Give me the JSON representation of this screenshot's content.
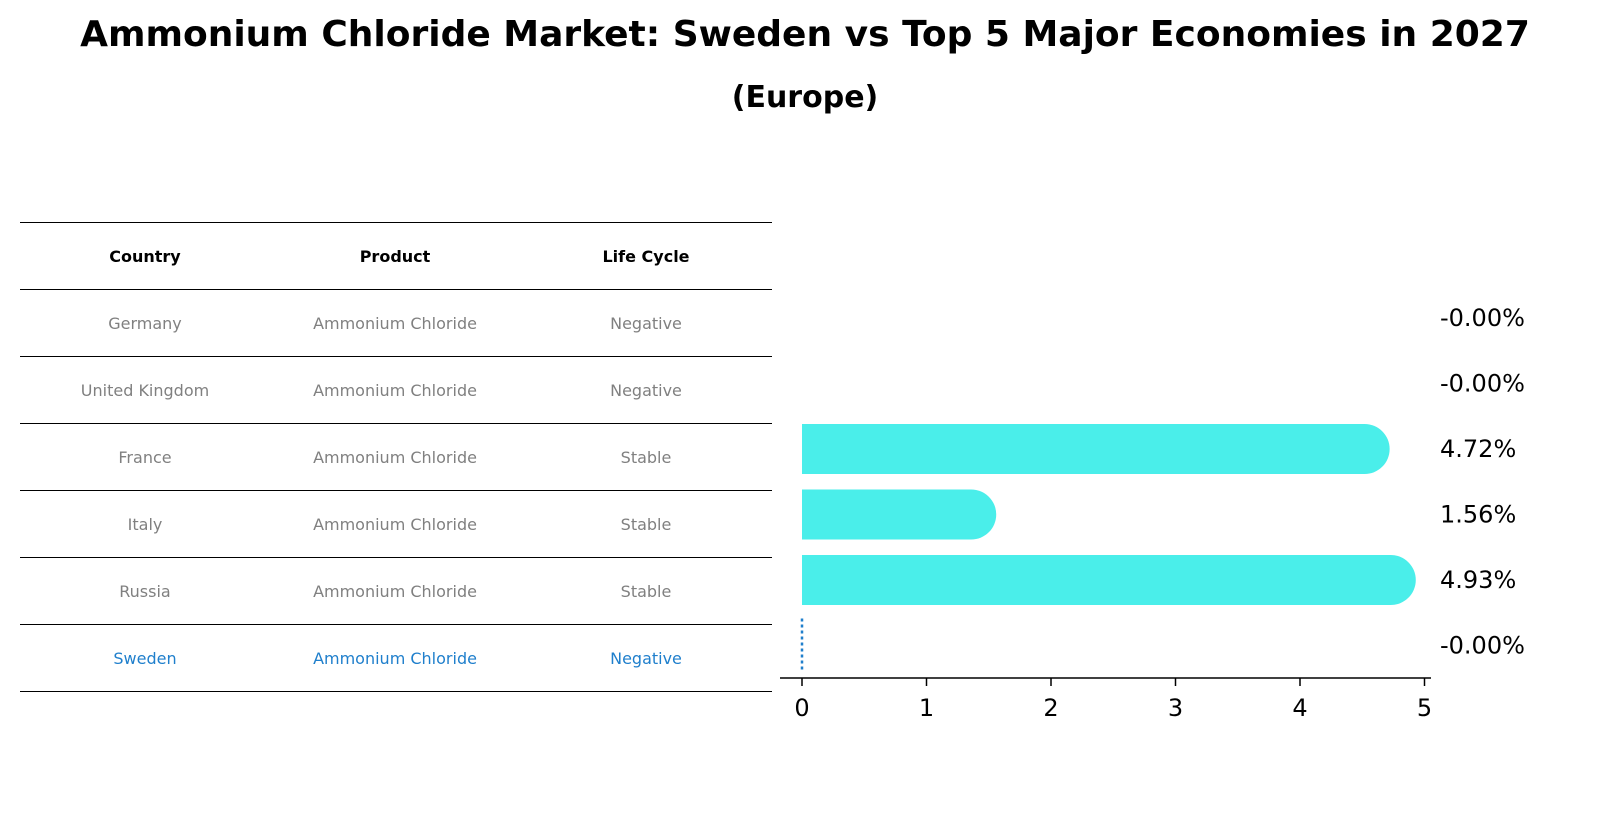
{
  "title": "Ammonium Chloride Market: Sweden vs Top 5 Major Economies in 2027",
  "subtitle": "(Europe)",
  "table": {
    "headers": [
      "Country",
      "Product",
      "Life Cycle"
    ],
    "rows": [
      [
        "Germany",
        "Ammonium Chloride",
        "Negative"
      ],
      [
        "United Kingdom",
        "Ammonium Chloride",
        "Negative"
      ],
      [
        "France",
        "Ammonium Chloride",
        "Stable"
      ],
      [
        "Italy",
        "Ammonium Chloride",
        "Stable"
      ],
      [
        "Russia",
        "Ammonium Chloride",
        "Stable"
      ],
      [
        "Sweden",
        "Ammonium Chloride",
        "Negative"
      ]
    ],
    "highlight_row": 5,
    "highlight_color": "#1f7fcc",
    "text_color": "#808080"
  },
  "chart_data": {
    "type": "bar",
    "orientation": "horizontal",
    "categories": [
      "Germany",
      "United Kingdom",
      "France",
      "Italy",
      "Russia",
      "Sweden"
    ],
    "values": [
      -0.0,
      -0.0,
      4.72,
      1.56,
      4.93,
      -0.0
    ],
    "value_labels": [
      "-0.00%",
      "-0.00%",
      "4.72%",
      "1.56%",
      "4.93%",
      "-0.00%"
    ],
    "bar_color": "#4aeeea",
    "reference_line_color": "#1f7fcc",
    "xlim": [
      -0.25,
      5.2
    ],
    "xticks": [
      0,
      1,
      2,
      3,
      4,
      5
    ],
    "grid": false
  }
}
